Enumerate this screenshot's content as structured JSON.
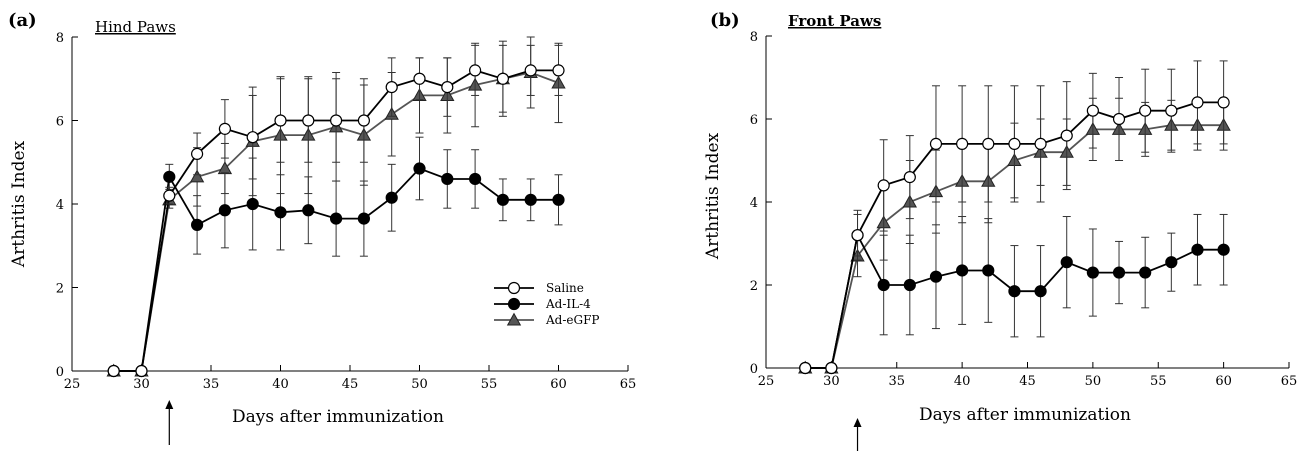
{
  "chart_data": [
    {
      "type": "line",
      "panel_label": "(a)",
      "title": "Hind Paws",
      "xlabel": "Days after immunization",
      "ylabel": "Arthritis Index",
      "xlim": [
        25,
        65
      ],
      "ylim": [
        0,
        8
      ],
      "x_ticks": [
        25,
        30,
        35,
        40,
        45,
        50,
        55,
        60,
        65
      ],
      "y_ticks": [
        0,
        2,
        4,
        6,
        8
      ],
      "arrow_x": 32,
      "legend_position": "lower-right",
      "series": [
        {
          "name": "Saline",
          "marker": "circle-open",
          "color": "#000000",
          "x": [
            28,
            30,
            32,
            34,
            36,
            38,
            40,
            42,
            44,
            46,
            48,
            50,
            52,
            54,
            56,
            58,
            60
          ],
          "y": [
            0,
            0,
            4.2,
            5.2,
            5.8,
            5.6,
            6.0,
            6.0,
            6.0,
            6.0,
            6.8,
            7.0,
            6.8,
            7.2,
            7.0,
            7.2,
            7.2
          ],
          "err": [
            0,
            0,
            0.2,
            0.5,
            0.7,
            1.0,
            1.0,
            1.0,
            1.0,
            1.0,
            0.7,
            0.5,
            0.7,
            0.6,
            0.8,
            0.6,
            0.6
          ]
        },
        {
          "name": "Ad-IL-4",
          "marker": "circle-filled",
          "color": "#000000",
          "x": [
            28,
            30,
            32,
            34,
            36,
            38,
            40,
            42,
            44,
            46,
            48,
            50,
            52,
            54,
            56,
            58,
            60
          ],
          "y": [
            0,
            0,
            4.65,
            3.5,
            3.85,
            4.0,
            3.8,
            3.85,
            3.65,
            3.65,
            4.15,
            4.85,
            4.6,
            4.6,
            4.1,
            4.1,
            4.1
          ],
          "err": [
            0,
            0,
            0.3,
            0.7,
            0.9,
            1.1,
            0.9,
            0.8,
            0.9,
            0.9,
            0.8,
            0.75,
            0.7,
            0.7,
            0.5,
            0.5,
            0.6
          ]
        },
        {
          "name": "Ad-eGFP",
          "marker": "triangle-filled",
          "color": "#555555",
          "x": [
            28,
            30,
            32,
            34,
            36,
            38,
            40,
            42,
            44,
            46,
            48,
            50,
            52,
            54,
            56,
            58,
            60
          ],
          "y": [
            0,
            0,
            4.1,
            4.65,
            4.85,
            5.5,
            5.65,
            5.65,
            5.85,
            5.65,
            6.15,
            6.6,
            6.6,
            6.85,
            7.0,
            7.15,
            6.9
          ],
          "err": [
            0,
            0,
            0.2,
            0.7,
            0.6,
            1.3,
            1.4,
            1.4,
            1.3,
            1.2,
            1.0,
            0.9,
            0.9,
            1.0,
            0.9,
            0.85,
            0.95
          ]
        }
      ]
    },
    {
      "type": "line",
      "panel_label": "(b)",
      "title": "Front Paws",
      "xlabel": "Days after immunization",
      "ylabel": "Arthritis Index",
      "xlim": [
        25,
        65
      ],
      "ylim": [
        0,
        8
      ],
      "x_ticks": [
        25,
        30,
        35,
        40,
        45,
        50,
        55,
        60,
        65
      ],
      "y_ticks": [
        0,
        2,
        4,
        6,
        8
      ],
      "arrow_x": 32,
      "series": [
        {
          "name": "Saline",
          "marker": "circle-open",
          "color": "#000000",
          "x": [
            28,
            30,
            32,
            34,
            36,
            38,
            40,
            42,
            44,
            46,
            48,
            50,
            52,
            54,
            56,
            58,
            60
          ],
          "y": [
            0,
            0,
            3.2,
            4.4,
            4.6,
            5.4,
            5.4,
            5.4,
            5.4,
            5.4,
            5.6,
            6.2,
            6.0,
            6.2,
            6.2,
            6.4,
            6.4
          ],
          "err": [
            0,
            0,
            0.5,
            1.1,
            1.0,
            1.4,
            1.4,
            1.4,
            1.4,
            1.4,
            1.3,
            0.9,
            1.0,
            1.0,
            1.0,
            1.0,
            1.0
          ]
        },
        {
          "name": "Ad-IL-4",
          "marker": "circle-filled",
          "color": "#000000",
          "x": [
            28,
            30,
            32,
            34,
            36,
            38,
            40,
            42,
            44,
            46,
            48,
            50,
            52,
            54,
            56,
            58,
            60
          ],
          "y": [
            0,
            0,
            3.2,
            2.0,
            2.0,
            2.2,
            2.35,
            2.35,
            1.85,
            1.85,
            2.55,
            2.3,
            2.3,
            2.3,
            2.55,
            2.85,
            2.85
          ],
          "err": [
            0,
            0,
            0.6,
            1.2,
            1.2,
            1.25,
            1.3,
            1.25,
            1.1,
            1.1,
            1.1,
            1.05,
            0.75,
            0.85,
            0.7,
            0.85,
            0.85
          ]
        },
        {
          "name": "Ad-eGFP",
          "marker": "triangle-filled",
          "color": "#555555",
          "x": [
            28,
            30,
            32,
            34,
            36,
            38,
            40,
            42,
            44,
            46,
            48,
            50,
            52,
            54,
            56,
            58,
            60
          ],
          "y": [
            0,
            0,
            2.7,
            3.5,
            4.0,
            4.25,
            4.5,
            4.5,
            5.0,
            5.2,
            5.2,
            5.75,
            5.75,
            5.75,
            5.85,
            5.85,
            5.85
          ],
          "err": [
            0,
            0,
            0.5,
            0.9,
            1.0,
            1.0,
            1.0,
            1.0,
            0.9,
            0.8,
            0.8,
            0.75,
            0.75,
            0.65,
            0.6,
            0.6,
            0.6
          ]
        }
      ]
    }
  ]
}
